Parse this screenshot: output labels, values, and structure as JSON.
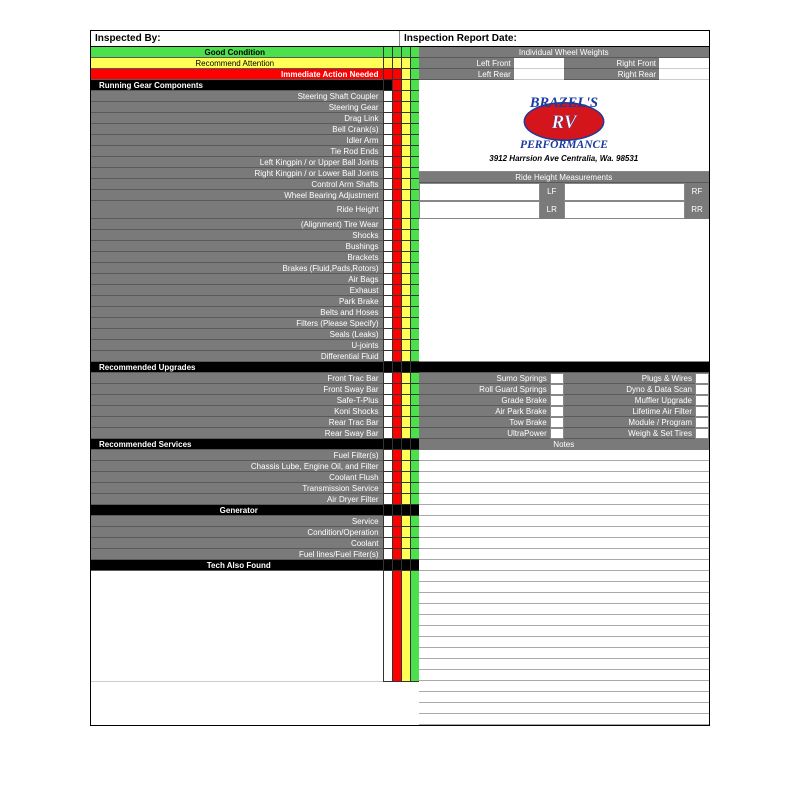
{
  "header": {
    "inspected_by": "Inspected By:",
    "report_date": "Inspection Report Date:"
  },
  "legend": {
    "good": "Good Condition",
    "attention": "Recommend Attention",
    "immediate": "Immediate Action Needed"
  },
  "sections": {
    "running": "Running Gear Components",
    "upgrades": "Recommended Upgrades",
    "services": "Recommended Services",
    "generator": "Generator",
    "tech": "Tech Also Found"
  },
  "running_items": [
    "Steering Shaft Coupler",
    "Steering Gear",
    "Drag Link",
    "Bell Crank(s)",
    "Idler Arm",
    "Tie Rod Ends",
    "Left Kingpin  /  or Upper Ball Joints",
    "Right Kingpin  /  or Lower Ball Joints",
    "Control Arm Shafts",
    "Wheel Bearing Adjustment"
  ],
  "ride_height": "Ride Height",
  "running_items2": [
    "(Alignment)  Tire Wear",
    "Shocks",
    "Bushings",
    "Brackets",
    "Brakes (Fluid,Pads,Rotors)",
    "Air Bags",
    "Exhaust",
    "Park Brake",
    "Belts and Hoses",
    "Filters (Please Specify)",
    "Seals (Leaks)",
    "U-joints",
    "Differential Fluid"
  ],
  "upgrade_left": [
    "Front Trac Bar",
    "Front Sway Bar",
    "Safe-T-Plus",
    "Koni Shocks",
    "Rear Trac Bar",
    "Rear Sway Bar"
  ],
  "upgrade_mid": [
    "Sumo Springs",
    "Roll Guard Springs",
    "Grade Brake",
    "Air Park Brake",
    "Tow Brake",
    "UltraPower"
  ],
  "upgrade_right": [
    "Plugs & Wires",
    "Dyno & Data Scan",
    "Muffler Upgrade",
    "Lifetime Air Filter",
    "Module / Program",
    "Weigh & Set Tires"
  ],
  "services": [
    "Fuel Filter(s)",
    "Chassis Lube, Engine Oil, and Filter",
    "Coolant Flush",
    "Transmission Service",
    "Air Dryer Filter"
  ],
  "generator": [
    "Service",
    "Condition/Operation",
    "Coolant",
    "Fuel lines/Fuel Fiter(s)"
  ],
  "wheel_weights": {
    "title": "Individual Wheel Weights",
    "lf": "Left Front",
    "rf": "Right Front",
    "lr": "Left Rear",
    "rr": "Right Rear"
  },
  "company": {
    "name_top": "BRAZEL'S",
    "name_mid": "RV",
    "name_bot": "PERFORMANCE",
    "address": "3912 Harrsion Ave Centralia, Wa. 98531"
  },
  "ride_measurements": {
    "title": "Ride Height Measurements",
    "lf": "LF",
    "rf": "RF",
    "lr": "LR",
    "rr": "RR"
  },
  "notes": "Notes",
  "colors": {
    "green": "#4de04d",
    "yellow": "#ffff55",
    "red": "#ff0000",
    "gray": "#7a7a7a",
    "black": "#000",
    "logo_red": "#d4151b",
    "logo_blue": "#1a3a9e"
  }
}
